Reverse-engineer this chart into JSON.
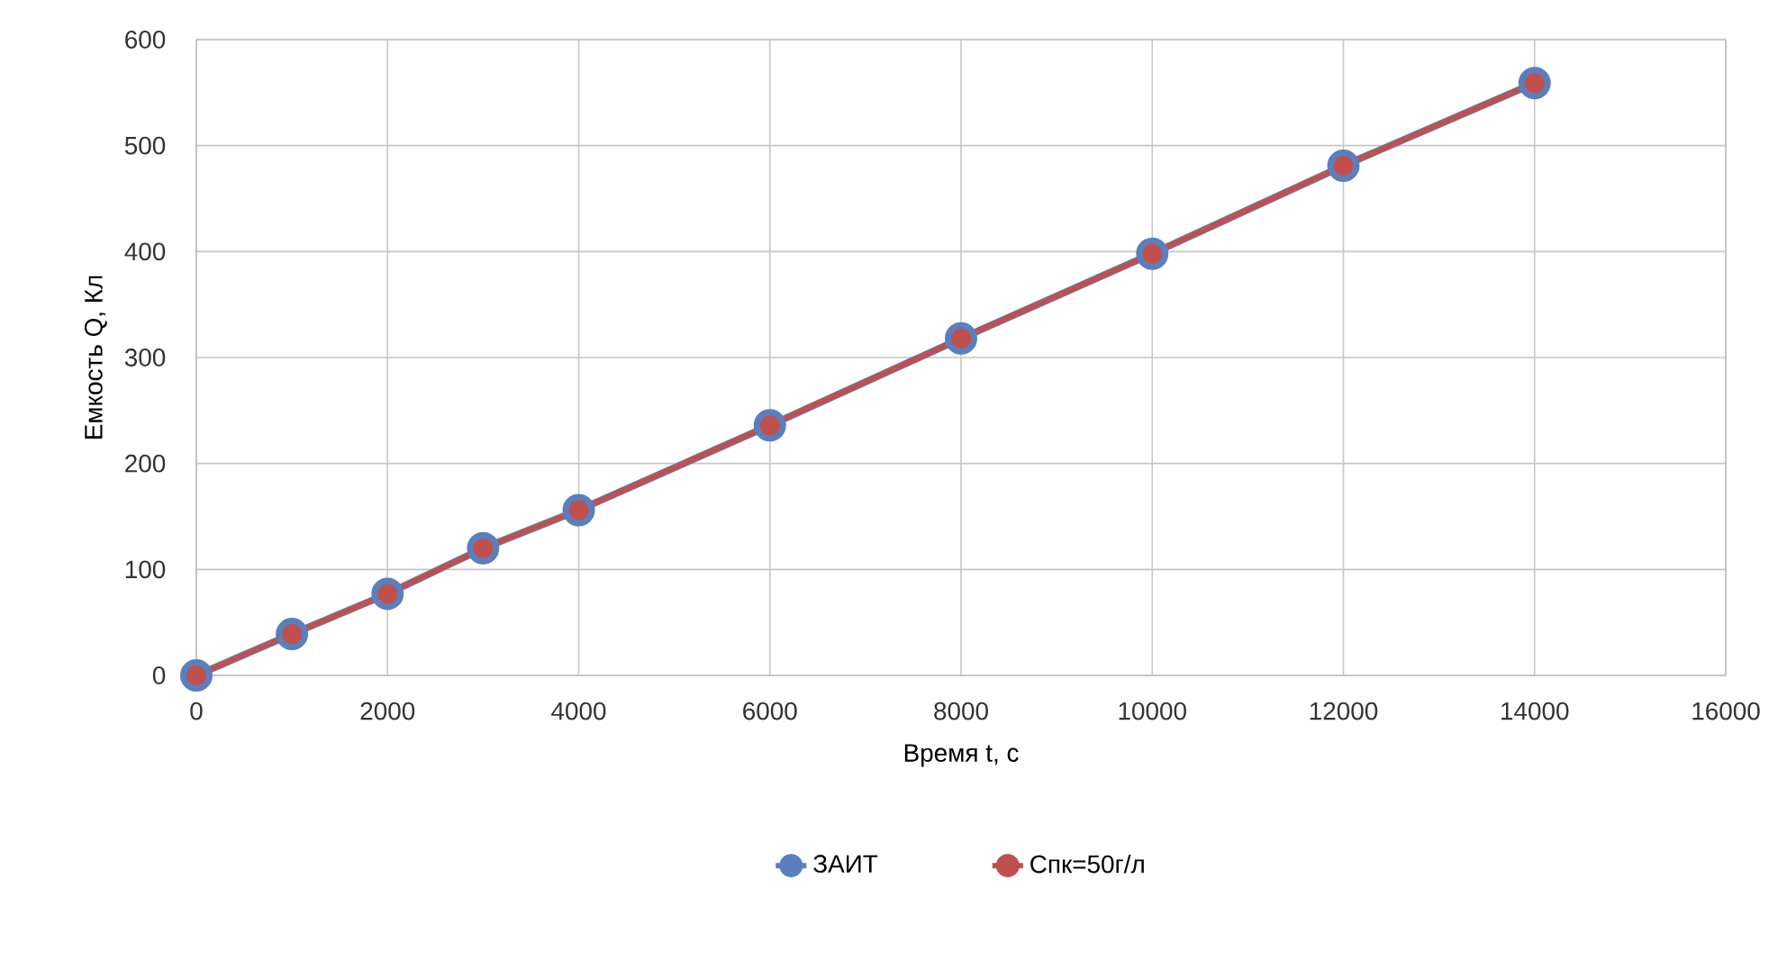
{
  "chart_data": {
    "type": "line",
    "xlabel": "Время t, с",
    "ylabel": "Емкость Q, Кл",
    "x": [
      0,
      1000,
      2000,
      3000,
      4000,
      6000,
      8000,
      10000,
      12000,
      14000
    ],
    "series": [
      {
        "name": "ЗАИТ",
        "color": "#5b7fbd",
        "values": [
          0,
          39,
          77,
          120,
          156,
          236,
          318,
          398,
          481,
          559
        ]
      },
      {
        "name": "Спк=50г/л",
        "color": "#c0504d",
        "values": [
          0,
          39,
          77,
          120,
          156,
          236,
          318,
          398,
          481,
          559
        ]
      }
    ],
    "xlim": [
      0,
      16000
    ],
    "xticks": [
      0,
      2000,
      4000,
      6000,
      8000,
      10000,
      12000,
      14000,
      16000
    ],
    "ylim": [
      0,
      600
    ],
    "yticks": [
      0,
      100,
      200,
      300,
      400,
      500,
      600
    ],
    "grid": true,
    "legend": "bottom",
    "marker": "circle",
    "line_style": "solid"
  }
}
